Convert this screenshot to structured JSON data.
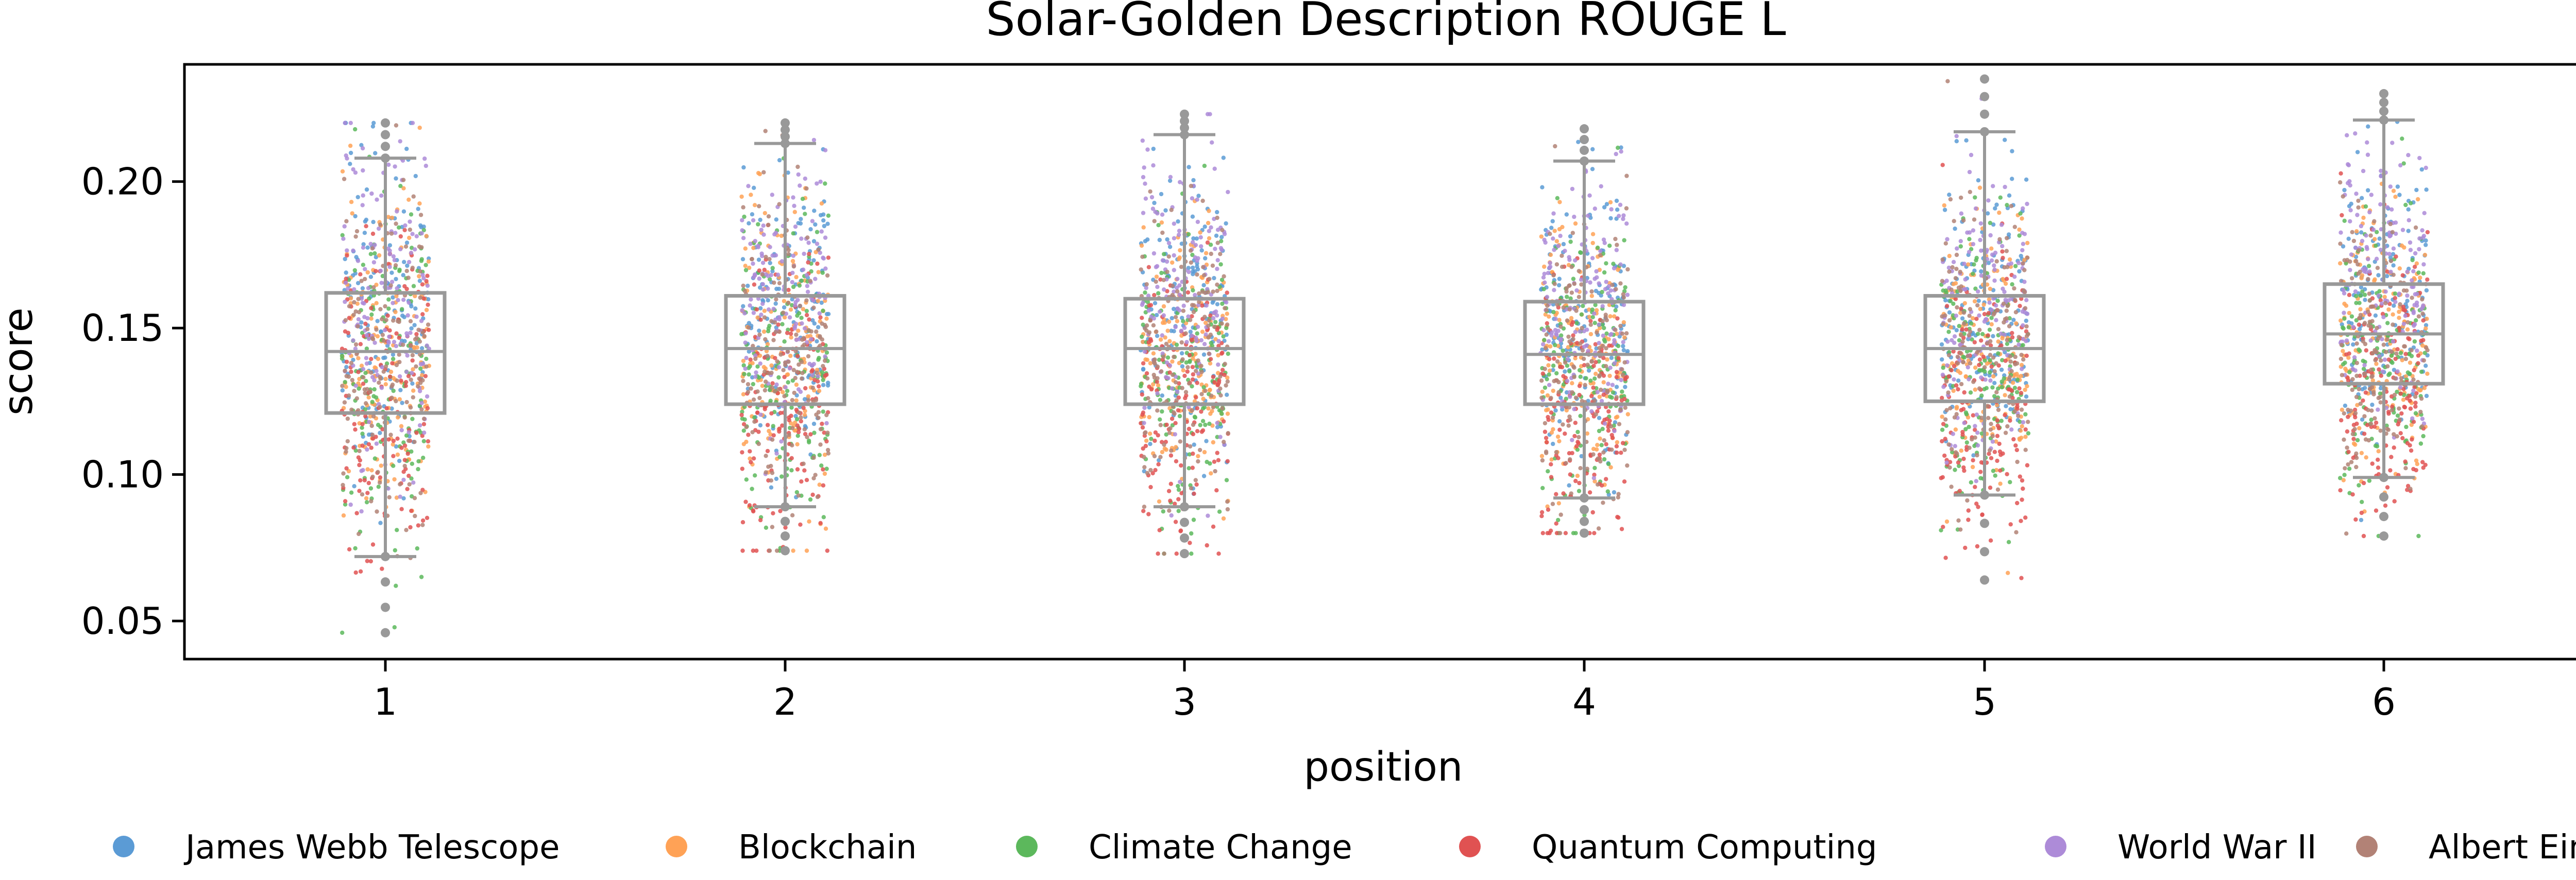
{
  "chart_data": {
    "type": "box-strip",
    "title": "Solar-Golden Description ROUGE L",
    "xlabel": "position",
    "ylabel": "score",
    "categories": [
      "1",
      "2",
      "3",
      "4",
      "5",
      "6"
    ],
    "ylim": [
      0.037,
      0.24
    ],
    "yticks": [
      "0.05",
      "0.10",
      "0.15",
      "0.20"
    ],
    "ytick_values": [
      0.05,
      0.1,
      0.15,
      0.2
    ],
    "grid": false,
    "legend_position": "bottom",
    "boxes": [
      {
        "category": "1",
        "q1": 0.121,
        "median": 0.142,
        "q3": 0.162,
        "whisker_low": 0.072,
        "whisker_high": 0.208,
        "min": 0.046,
        "max": 0.22
      },
      {
        "category": "2",
        "q1": 0.124,
        "median": 0.143,
        "q3": 0.161,
        "whisker_low": 0.089,
        "whisker_high": 0.213,
        "min": 0.074,
        "max": 0.22
      },
      {
        "category": "3",
        "q1": 0.124,
        "median": 0.143,
        "q3": 0.16,
        "whisker_low": 0.089,
        "whisker_high": 0.216,
        "min": 0.073,
        "max": 0.223
      },
      {
        "category": "4",
        "q1": 0.124,
        "median": 0.141,
        "q3": 0.159,
        "whisker_low": 0.092,
        "whisker_high": 0.207,
        "min": 0.08,
        "max": 0.218
      },
      {
        "category": "5",
        "q1": 0.125,
        "median": 0.143,
        "q3": 0.161,
        "whisker_low": 0.093,
        "whisker_high": 0.217,
        "min": 0.064,
        "max": 0.235
      },
      {
        "category": "6",
        "q1": 0.131,
        "median": 0.148,
        "q3": 0.165,
        "whisker_low": 0.099,
        "whisker_high": 0.221,
        "min": 0.079,
        "max": 0.23
      }
    ],
    "series": [
      {
        "name": "James Webb Telescope",
        "color": "#5b9bd5",
        "mean_offset": 0.012
      },
      {
        "name": "Blockchain",
        "color": "#ffa256",
        "mean_offset": 0.0
      },
      {
        "name": "Climate Change",
        "color": "#5cb85c",
        "mean_offset": -0.006
      },
      {
        "name": "Quantum Computing",
        "color": "#e05252",
        "mean_offset": -0.018
      },
      {
        "name": "World War II",
        "color": "#ad8bd8",
        "mean_offset": 0.018
      },
      {
        "name": "Albert Einstein",
        "color": "#b28276",
        "mean_offset": -0.004
      }
    ],
    "box_color": "#999999"
  }
}
